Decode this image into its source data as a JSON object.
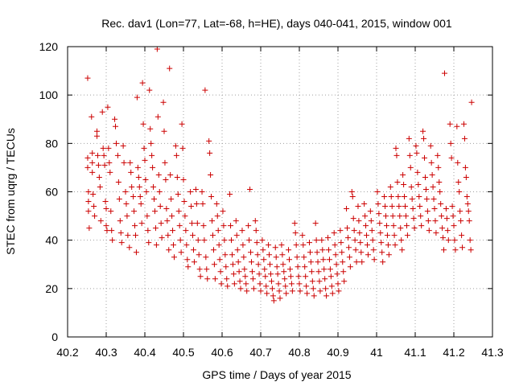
{
  "chart_data": {
    "type": "scatter",
    "title": "Rec. dav1 (Lon=77, Lat=-68, h=HE), days 040-041, 2015, window 001",
    "xlabel": "GPS time / Days of year 2015",
    "ylabel": "STEC from uqrg / TECUs",
    "xlim": [
      40.2,
      41.3
    ],
    "ylim": [
      0,
      120
    ],
    "x_ticks": [
      "40.2",
      "40.3",
      "40.4",
      "40.5",
      "40.6",
      "40.7",
      "40.8",
      "40.9",
      "41",
      "41.1",
      "41.2",
      "41.3"
    ],
    "y_ticks": [
      "0",
      "20",
      "40",
      "60",
      "80",
      "100",
      "120"
    ],
    "grid": true,
    "marker": "plus",
    "color": "#cc0000",
    "points": [
      [
        40.252,
        107
      ],
      [
        40.252,
        74
      ],
      [
        40.252,
        70
      ],
      [
        40.254,
        60
      ],
      [
        40.254,
        56
      ],
      [
        40.254,
        52
      ],
      [
        40.256,
        45
      ],
      [
        40.262,
        91
      ],
      [
        40.264,
        76
      ],
      [
        40.264,
        72
      ],
      [
        40.264,
        68
      ],
      [
        40.266,
        59
      ],
      [
        40.268,
        54
      ],
      [
        40.27,
        50
      ],
      [
        40.276,
        85
      ],
      [
        40.276,
        83
      ],
      [
        40.278,
        75
      ],
      [
        40.28,
        71
      ],
      [
        40.282,
        66
      ],
      [
        40.284,
        62
      ],
      [
        40.286,
        48
      ],
      [
        40.29,
        93
      ],
      [
        40.292,
        78
      ],
      [
        40.294,
        75
      ],
      [
        40.296,
        71
      ],
      [
        40.298,
        56
      ],
      [
        40.3,
        53
      ],
      [
        40.3,
        46
      ],
      [
        40.302,
        44
      ],
      [
        40.304,
        95
      ],
      [
        40.306,
        78
      ],
      [
        40.308,
        72
      ],
      [
        40.31,
        68
      ],
      [
        40.312,
        52
      ],
      [
        40.314,
        44
      ],
      [
        40.316,
        40
      ],
      [
        40.322,
        90
      ],
      [
        40.324,
        87
      ],
      [
        40.326,
        80
      ],
      [
        40.33,
        75
      ],
      [
        40.332,
        64
      ],
      [
        40.334,
        57
      ],
      [
        40.336,
        48
      ],
      [
        40.338,
        43
      ],
      [
        40.34,
        39
      ],
      [
        40.344,
        79
      ],
      [
        40.346,
        72
      ],
      [
        40.35,
        60
      ],
      [
        40.352,
        55
      ],
      [
        40.354,
        50
      ],
      [
        40.356,
        42
      ],
      [
        40.36,
        37
      ],
      [
        40.362,
        72
      ],
      [
        40.364,
        68
      ],
      [
        40.366,
        62
      ],
      [
        40.37,
        58
      ],
      [
        40.372,
        52
      ],
      [
        40.374,
        46
      ],
      [
        40.376,
        42
      ],
      [
        40.378,
        35
      ],
      [
        40.38,
        99
      ],
      [
        40.382,
        70
      ],
      [
        40.384,
        66
      ],
      [
        40.386,
        62
      ],
      [
        40.388,
        58
      ],
      [
        40.39,
        55
      ],
      [
        40.392,
        47
      ],
      [
        40.394,
        105
      ],
      [
        40.396,
        88
      ],
      [
        40.398,
        78
      ],
      [
        40.4,
        73
      ],
      [
        40.402,
        65
      ],
      [
        40.404,
        60
      ],
      [
        40.406,
        50
      ],
      [
        40.408,
        44
      ],
      [
        40.41,
        39
      ],
      [
        40.412,
        102
      ],
      [
        40.414,
        86
      ],
      [
        40.416,
        80
      ],
      [
        40.418,
        75
      ],
      [
        40.42,
        70
      ],
      [
        40.422,
        62
      ],
      [
        40.424,
        57
      ],
      [
        40.426,
        52
      ],
      [
        40.428,
        45
      ],
      [
        40.43,
        38
      ],
      [
        40.432,
        119
      ],
      [
        40.434,
        91
      ],
      [
        40.436,
        67
      ],
      [
        40.438,
        60
      ],
      [
        40.44,
        54
      ],
      [
        40.442,
        47
      ],
      [
        40.444,
        41
      ],
      [
        40.448,
        97
      ],
      [
        40.45,
        85
      ],
      [
        40.452,
        72
      ],
      [
        40.454,
        65
      ],
      [
        40.456,
        53
      ],
      [
        40.458,
        48
      ],
      [
        40.46,
        42
      ],
      [
        40.462,
        36
      ],
      [
        40.464,
        111
      ],
      [
        40.466,
        67
      ],
      [
        40.468,
        57
      ],
      [
        40.47,
        50
      ],
      [
        40.472,
        44
      ],
      [
        40.474,
        38
      ],
      [
        40.476,
        33
      ],
      [
        40.48,
        79
      ],
      [
        40.482,
        75
      ],
      [
        40.484,
        66
      ],
      [
        40.486,
        59
      ],
      [
        40.488,
        52
      ],
      [
        40.49,
        46
      ],
      [
        40.492,
        40
      ],
      [
        40.494,
        35
      ],
      [
        40.496,
        88
      ],
      [
        40.498,
        78
      ],
      [
        40.5,
        65
      ],
      [
        40.502,
        56
      ],
      [
        40.504,
        50
      ],
      [
        40.506,
        44
      ],
      [
        40.508,
        38
      ],
      [
        40.51,
        32
      ],
      [
        40.512,
        29
      ],
      [
        40.518,
        60
      ],
      [
        40.52,
        54
      ],
      [
        40.522,
        47
      ],
      [
        40.524,
        42
      ],
      [
        40.526,
        36
      ],
      [
        40.528,
        31
      ],
      [
        40.532,
        61
      ],
      [
        40.534,
        55
      ],
      [
        40.536,
        47
      ],
      [
        40.538,
        40
      ],
      [
        40.54,
        34
      ],
      [
        40.542,
        28
      ],
      [
        40.544,
        25
      ],
      [
        40.548,
        60
      ],
      [
        40.55,
        55
      ],
      [
        40.552,
        46
      ],
      [
        40.554,
        40
      ],
      [
        40.556,
        102
      ],
      [
        40.558,
        33
      ],
      [
        40.56,
        28
      ],
      [
        40.562,
        24
      ],
      [
        40.566,
        81
      ],
      [
        40.568,
        76
      ],
      [
        40.57,
        67
      ],
      [
        40.572,
        58
      ],
      [
        40.574,
        48
      ],
      [
        40.576,
        42
      ],
      [
        40.578,
        36
      ],
      [
        40.58,
        30
      ],
      [
        40.582,
        24
      ],
      [
        40.586,
        55
      ],
      [
        40.588,
        50
      ],
      [
        40.59,
        44
      ],
      [
        40.592,
        38
      ],
      [
        40.594,
        32
      ],
      [
        40.596,
        27
      ],
      [
        40.598,
        22
      ],
      [
        40.602,
        52
      ],
      [
        40.604,
        46
      ],
      [
        40.606,
        40
      ],
      [
        40.608,
        34
      ],
      [
        40.61,
        29
      ],
      [
        40.612,
        24
      ],
      [
        40.614,
        21
      ],
      [
        40.62,
        59
      ],
      [
        40.622,
        46
      ],
      [
        40.624,
        40
      ],
      [
        40.626,
        34
      ],
      [
        40.628,
        30
      ],
      [
        40.63,
        26
      ],
      [
        40.632,
        22
      ],
      [
        40.636,
        48
      ],
      [
        40.638,
        42
      ],
      [
        40.64,
        36
      ],
      [
        40.642,
        31
      ],
      [
        40.644,
        27
      ],
      [
        40.646,
        23
      ],
      [
        40.648,
        20
      ],
      [
        40.652,
        44
      ],
      [
        40.654,
        38
      ],
      [
        40.656,
        33
      ],
      [
        40.658,
        28
      ],
      [
        40.66,
        25
      ],
      [
        40.662,
        22
      ],
      [
        40.664,
        19
      ],
      [
        40.668,
        46
      ],
      [
        40.67,
        40
      ],
      [
        40.672,
        61
      ],
      [
        40.674,
        35
      ],
      [
        40.676,
        31
      ],
      [
        40.678,
        27
      ],
      [
        40.68,
        24
      ],
      [
        40.682,
        20
      ],
      [
        40.686,
        48
      ],
      [
        40.688,
        44
      ],
      [
        40.69,
        39
      ],
      [
        40.692,
        34
      ],
      [
        40.694,
        30
      ],
      [
        40.696,
        26
      ],
      [
        40.698,
        22
      ],
      [
        40.7,
        19
      ],
      [
        40.704,
        40
      ],
      [
        40.706,
        36
      ],
      [
        40.708,
        32
      ],
      [
        40.71,
        28
      ],
      [
        40.712,
        25
      ],
      [
        40.714,
        21
      ],
      [
        40.716,
        18
      ],
      [
        40.72,
        38
      ],
      [
        40.722,
        34
      ],
      [
        40.724,
        30
      ],
      [
        40.726,
        26
      ],
      [
        40.728,
        23
      ],
      [
        40.73,
        20
      ],
      [
        40.732,
        17
      ],
      [
        40.734,
        15
      ],
      [
        40.738,
        37
      ],
      [
        40.74,
        33
      ],
      [
        40.742,
        29
      ],
      [
        40.744,
        26
      ],
      [
        40.746,
        22
      ],
      [
        40.748,
        19
      ],
      [
        40.75,
        16
      ],
      [
        40.754,
        38
      ],
      [
        40.756,
        34
      ],
      [
        40.758,
        30
      ],
      [
        40.76,
        27
      ],
      [
        40.762,
        24
      ],
      [
        40.764,
        21
      ],
      [
        40.766,
        18
      ],
      [
        40.772,
        36
      ],
      [
        40.774,
        32
      ],
      [
        40.776,
        28
      ],
      [
        40.778,
        25
      ],
      [
        40.78,
        22
      ],
      [
        40.782,
        19
      ],
      [
        40.788,
        47
      ],
      [
        40.79,
        43
      ],
      [
        40.792,
        38
      ],
      [
        40.794,
        33
      ],
      [
        40.796,
        29
      ],
      [
        40.798,
        25
      ],
      [
        40.8,
        22
      ],
      [
        40.802,
        19
      ],
      [
        40.808,
        42
      ],
      [
        40.81,
        38
      ],
      [
        40.812,
        33
      ],
      [
        40.814,
        29
      ],
      [
        40.816,
        25
      ],
      [
        40.818,
        21
      ],
      [
        40.82,
        18
      ],
      [
        40.826,
        39
      ],
      [
        40.828,
        35
      ],
      [
        40.83,
        31
      ],
      [
        40.832,
        27
      ],
      [
        40.834,
        23
      ],
      [
        40.836,
        20
      ],
      [
        40.838,
        17
      ],
      [
        40.842,
        47
      ],
      [
        40.844,
        40
      ],
      [
        40.846,
        35
      ],
      [
        40.848,
        31
      ],
      [
        40.85,
        27
      ],
      [
        40.852,
        23
      ],
      [
        40.854,
        19
      ],
      [
        40.858,
        40
      ],
      [
        40.86,
        36
      ],
      [
        40.862,
        32
      ],
      [
        40.864,
        28
      ],
      [
        40.866,
        24
      ],
      [
        40.868,
        20
      ],
      [
        40.87,
        17
      ],
      [
        40.874,
        41
      ],
      [
        40.876,
        36
      ],
      [
        40.878,
        32
      ],
      [
        40.88,
        28
      ],
      [
        40.882,
        25
      ],
      [
        40.884,
        21
      ],
      [
        40.886,
        18
      ],
      [
        40.89,
        43
      ],
      [
        40.892,
        38
      ],
      [
        40.894,
        34
      ],
      [
        40.896,
        30
      ],
      [
        40.898,
        26
      ],
      [
        40.9,
        22
      ],
      [
        40.902,
        19
      ],
      [
        40.906,
        44
      ],
      [
        40.908,
        39
      ],
      [
        40.91,
        35
      ],
      [
        40.912,
        31
      ],
      [
        40.914,
        27
      ],
      [
        40.916,
        23
      ],
      [
        40.922,
        53
      ],
      [
        40.924,
        45
      ],
      [
        40.926,
        41
      ],
      [
        40.928,
        37
      ],
      [
        40.93,
        33
      ],
      [
        40.932,
        29
      ],
      [
        40.936,
        60
      ],
      [
        40.938,
        58
      ],
      [
        40.94,
        49
      ],
      [
        40.942,
        44
      ],
      [
        40.944,
        40
      ],
      [
        40.946,
        36
      ],
      [
        40.948,
        31
      ],
      [
        40.952,
        54
      ],
      [
        40.954,
        48
      ],
      [
        40.956,
        43
      ],
      [
        40.958,
        39
      ],
      [
        40.96,
        35
      ],
      [
        40.962,
        31
      ],
      [
        40.968,
        55
      ],
      [
        40.97,
        50
      ],
      [
        40.972,
        46
      ],
      [
        40.974,
        42
      ],
      [
        40.976,
        38
      ],
      [
        40.978,
        34
      ],
      [
        40.984,
        52
      ],
      [
        40.986,
        48
      ],
      [
        40.988,
        44
      ],
      [
        40.99,
        40
      ],
      [
        40.992,
        36
      ],
      [
        40.994,
        32
      ],
      [
        41.002,
        60
      ],
      [
        41.004,
        55
      ],
      [
        41.006,
        51
      ],
      [
        41.008,
        47
      ],
      [
        41.01,
        43
      ],
      [
        41.012,
        39
      ],
      [
        41.014,
        35
      ],
      [
        41.016,
        31
      ],
      [
        41.02,
        58
      ],
      [
        41.022,
        54
      ],
      [
        41.024,
        50
      ],
      [
        41.026,
        46
      ],
      [
        41.028,
        42
      ],
      [
        41.03,
        38
      ],
      [
        41.032,
        34
      ],
      [
        41.036,
        62
      ],
      [
        41.038,
        58
      ],
      [
        41.04,
        54
      ],
      [
        41.042,
        50
      ],
      [
        41.044,
        46
      ],
      [
        41.046,
        42
      ],
      [
        41.048,
        38
      ],
      [
        41.05,
        78
      ],
      [
        41.052,
        75
      ],
      [
        41.054,
        64
      ],
      [
        41.056,
        58
      ],
      [
        41.058,
        54
      ],
      [
        41.06,
        50
      ],
      [
        41.062,
        45
      ],
      [
        41.064,
        40
      ],
      [
        41.066,
        36
      ],
      [
        41.068,
        67
      ],
      [
        41.07,
        63
      ],
      [
        41.072,
        58
      ],
      [
        41.074,
        54
      ],
      [
        41.076,
        50
      ],
      [
        41.078,
        46
      ],
      [
        41.08,
        42
      ],
      [
        41.084,
        82
      ],
      [
        41.086,
        75
      ],
      [
        41.088,
        70
      ],
      [
        41.09,
        62
      ],
      [
        41.092,
        57
      ],
      [
        41.094,
        53
      ],
      [
        41.096,
        49
      ],
      [
        41.098,
        45
      ],
      [
        41.102,
        79
      ],
      [
        41.104,
        76
      ],
      [
        41.106,
        68
      ],
      [
        41.108,
        63
      ],
      [
        41.11,
        58
      ],
      [
        41.112,
        54
      ],
      [
        41.114,
        50
      ],
      [
        41.116,
        46
      ],
      [
        41.12,
        85
      ],
      [
        41.122,
        82
      ],
      [
        41.124,
        74
      ],
      [
        41.126,
        66
      ],
      [
        41.128,
        61
      ],
      [
        41.13,
        57
      ],
      [
        41.132,
        52
      ],
      [
        41.134,
        48
      ],
      [
        41.136,
        44
      ],
      [
        41.14,
        79
      ],
      [
        41.142,
        72
      ],
      [
        41.144,
        67
      ],
      [
        41.146,
        62
      ],
      [
        41.148,
        57
      ],
      [
        41.15,
        53
      ],
      [
        41.152,
        48
      ],
      [
        41.154,
        43
      ],
      [
        41.158,
        75
      ],
      [
        41.16,
        70
      ],
      [
        41.162,
        64
      ],
      [
        41.164,
        60
      ],
      [
        41.166,
        55
      ],
      [
        41.168,
        50
      ],
      [
        41.17,
        45
      ],
      [
        41.172,
        41
      ],
      [
        41.174,
        36
      ],
      [
        41.176,
        109
      ],
      [
        41.18,
        53
      ],
      [
        41.182,
        49
      ],
      [
        41.184,
        44
      ],
      [
        41.186,
        40
      ],
      [
        41.19,
        88
      ],
      [
        41.192,
        80
      ],
      [
        41.194,
        74
      ],
      [
        41.196,
        54
      ],
      [
        41.198,
        50
      ],
      [
        41.2,
        46
      ],
      [
        41.202,
        40
      ],
      [
        41.204,
        36
      ],
      [
        41.208,
        87
      ],
      [
        41.21,
        72
      ],
      [
        41.212,
        64
      ],
      [
        41.214,
        60
      ],
      [
        41.216,
        52
      ],
      [
        41.218,
        48
      ],
      [
        41.22,
        42
      ],
      [
        41.222,
        37
      ],
      [
        41.226,
        88
      ],
      [
        41.228,
        82
      ],
      [
        41.23,
        70
      ],
      [
        41.232,
        66
      ],
      [
        41.234,
        58
      ],
      [
        41.236,
        55
      ],
      [
        41.238,
        52
      ],
      [
        41.24,
        48
      ],
      [
        41.242,
        40
      ],
      [
        41.244,
        36
      ],
      [
        41.246,
        97
      ]
    ]
  }
}
